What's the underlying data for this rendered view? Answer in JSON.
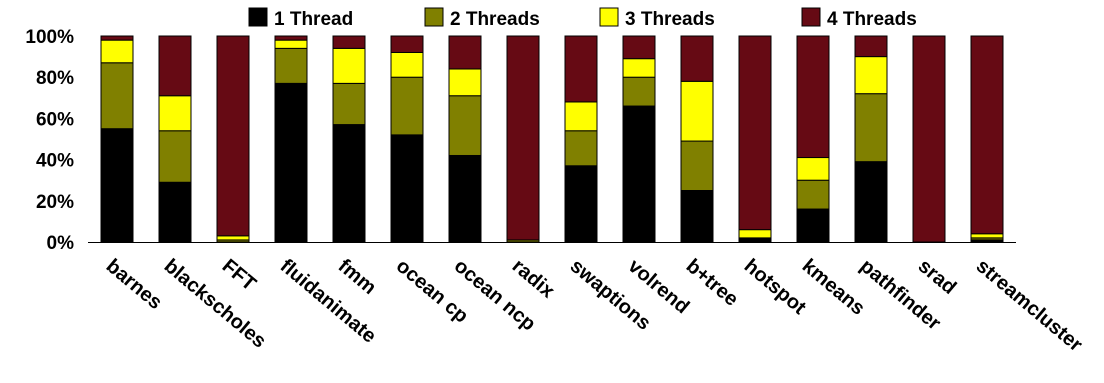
{
  "chart_data": {
    "type": "bar",
    "stacked": true,
    "normalized": true,
    "title": "",
    "xlabel": "",
    "ylabel": "",
    "ylim": [
      0,
      100
    ],
    "yticks": [
      "0%",
      "20%",
      "40%",
      "60%",
      "80%",
      "100%"
    ],
    "grid": false,
    "legend_position": "top",
    "categories": [
      "barnes",
      "blackscholes",
      "FFT",
      "fluidanimate",
      "fmm",
      "ocean cp",
      "ocean ncp",
      "radix",
      "swaptions",
      "volrend",
      "b+tree",
      "hotspot",
      "kmeans",
      "pathfinder",
      "srad",
      "streamcluster"
    ],
    "series": [
      {
        "name": "1 Thread",
        "color": "#000000",
        "values": [
          55,
          29,
          0,
          77,
          57,
          52,
          42,
          0,
          37,
          66,
          25,
          2,
          16,
          39,
          0,
          1
        ]
      },
      {
        "name": "2 Threads",
        "color": "#808000",
        "values": [
          32,
          25,
          1,
          17,
          20,
          28,
          29,
          1,
          17,
          14,
          24,
          0,
          14,
          33,
          0,
          1
        ]
      },
      {
        "name": "3 Threads",
        "color": "#ffff00",
        "values": [
          11,
          17,
          2,
          4,
          17,
          12,
          13,
          0,
          14,
          9,
          29,
          4,
          11,
          18,
          0,
          2
        ]
      },
      {
        "name": "4 Threads",
        "color": "#660a14",
        "values": [
          2,
          29,
          97,
          2,
          6,
          8,
          16,
          99,
          32,
          11,
          22,
          94,
          59,
          10,
          100,
          96
        ]
      }
    ]
  }
}
